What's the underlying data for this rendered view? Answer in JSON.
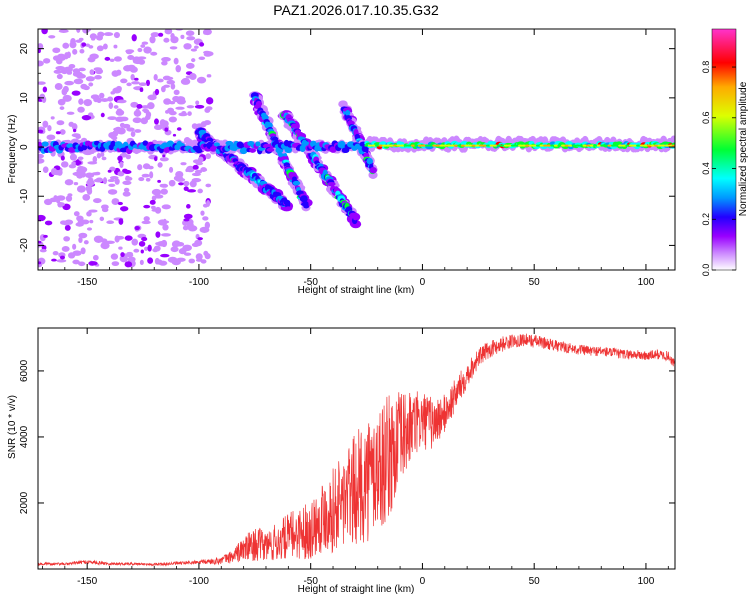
{
  "figure_title": "PAZ1.2026.017.10.35.G32",
  "colors": {
    "snr_line": "#ee3333",
    "axis": "#000000",
    "colormap": [
      "#ffffff",
      "#cc88ff",
      "#9900ff",
      "#2200ff",
      "#0099ff",
      "#00ffff",
      "#00ff33",
      "#ddff00",
      "#ffaa00",
      "#ff0000",
      "#ff33cc"
    ]
  },
  "chart_data": [
    {
      "type": "heatmap",
      "title": "PAZ1.2026.017.10.35.G32",
      "xlabel": "Height of straight line (km)",
      "ylabel": "Frequency (Hz)",
      "xlim": [
        -172,
        113
      ],
      "ylim": [
        -25,
        24
      ],
      "xticks": [
        -150,
        -100,
        -50,
        0,
        50,
        100
      ],
      "xtick_labels": [
        "-150",
        "-100",
        "-50",
        "0",
        "50",
        "100"
      ],
      "yticks": [
        -20,
        -10,
        0,
        10,
        20
      ],
      "ytick_labels": [
        "-20",
        "-10",
        "0",
        "10",
        "20"
      ],
      "colorbar": {
        "label": "Normalized spectral amplitude",
        "range": [
          0,
          0.95
        ],
        "ticks": [
          0,
          0.2,
          0.4,
          0.6,
          0.8
        ],
        "tick_labels": [
          "0.0",
          "0.2",
          "0.4",
          "0.6",
          "0.8"
        ]
      },
      "features": [
        {
          "name": "central carrier band",
          "x_start": -172,
          "x_end": 113,
          "frequency_hz": 0
        },
        {
          "name": "multipath branch 1",
          "x_start": -100,
          "x_end": -60,
          "freq_start_hz": 3,
          "freq_end_hz": -12
        },
        {
          "name": "multipath branch 2",
          "x_start": -75,
          "x_end": -52,
          "freq_start_hz": 10,
          "freq_end_hz": -12
        },
        {
          "name": "multipath branch 3",
          "x_start": -62,
          "x_end": -30,
          "freq_start_hz": 7,
          "freq_end_hz": -15
        },
        {
          "name": "multipath branch 4",
          "x_start": -35,
          "x_end": -22,
          "freq_start_hz": 8,
          "freq_end_hz": -5
        },
        {
          "name": "noise region",
          "x_start": -172,
          "x_end": -95,
          "freq_start_hz": -24,
          "freq_end_hz": 24
        }
      ]
    },
    {
      "type": "line",
      "xlabel": "Height of straight line (km)",
      "ylabel": "SNR (10 * v/v)",
      "xlim": [
        -172,
        113
      ],
      "ylim": [
        0,
        7300
      ],
      "xticks": [
        -150,
        -100,
        -50,
        0,
        50,
        100
      ],
      "xtick_labels": [
        "-150",
        "-100",
        "-50",
        "0",
        "50",
        "100"
      ],
      "yticks": [
        2000,
        4000,
        6000
      ],
      "ytick_labels": [
        "2000",
        "4000",
        "6000"
      ],
      "series": [
        {
          "name": "SNR",
          "x": [
            -172,
            -160,
            -150,
            -140,
            -130,
            -120,
            -110,
            -100,
            -90,
            -85,
            -80,
            -75,
            -70,
            -65,
            -60,
            -55,
            -50,
            -45,
            -40,
            -35,
            -30,
            -25,
            -20,
            -15,
            -10,
            -5,
            0,
            5,
            10,
            15,
            20,
            25,
            30,
            35,
            40,
            45,
            50,
            55,
            60,
            65,
            70,
            75,
            80,
            85,
            90,
            95,
            100,
            105,
            110,
            113
          ],
          "mean": [
            150,
            150,
            220,
            160,
            160,
            140,
            170,
            200,
            260,
            380,
            600,
            750,
            700,
            800,
            1000,
            1100,
            1200,
            1600,
            1800,
            2100,
            2400,
            2700,
            3000,
            3400,
            3900,
            4300,
            4500,
            4400,
            4700,
            5300,
            5900,
            6400,
            6650,
            6800,
            6900,
            6950,
            6900,
            6850,
            6750,
            6700,
            6650,
            6600,
            6600,
            6550,
            6500,
            6500,
            6450,
            6500,
            6450,
            6200
          ],
          "spread": [
            40,
            40,
            60,
            50,
            40,
            40,
            50,
            60,
            120,
            200,
            400,
            500,
            500,
            600,
            700,
            800,
            900,
            1100,
            1300,
            1500,
            1700,
            1900,
            2000,
            1900,
            1500,
            1100,
            900,
            800,
            600,
            500,
            400,
            300,
            250,
            250,
            200,
            200,
            200,
            180,
            180,
            160,
            160,
            160,
            150,
            150,
            150,
            150,
            150,
            150,
            150,
            150
          ]
        }
      ]
    }
  ]
}
